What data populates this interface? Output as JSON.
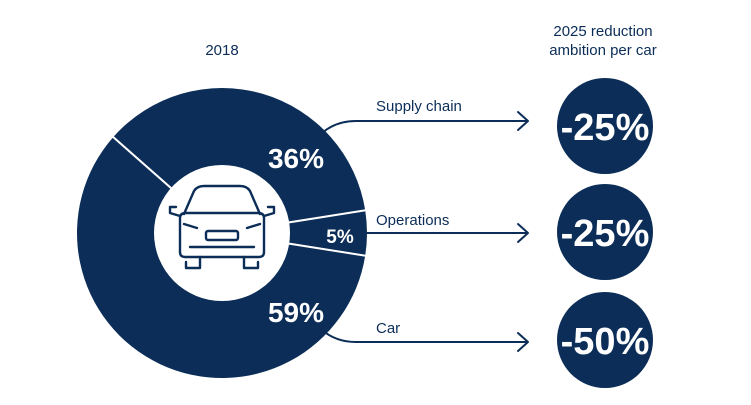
{
  "colors": {
    "navy": "#0b2d57",
    "white": "#ffffff"
  },
  "chart_data": {
    "type": "pie",
    "year_label": "2018",
    "categories": [
      "Supply chain",
      "Operations",
      "Car"
    ],
    "values": [
      36,
      5,
      59
    ],
    "value_labels": [
      "36%",
      "5%",
      "59%"
    ],
    "center_icon": "car-icon",
    "reduction_header": [
      "2025 reduction",
      "ambition per car"
    ],
    "reductions": [
      {
        "category": "Supply chain",
        "value": -25,
        "label": "-25%"
      },
      {
        "category": "Operations",
        "value": -25,
        "label": "-25%"
      },
      {
        "category": "Car",
        "value": -50,
        "label": "-50%"
      }
    ]
  }
}
